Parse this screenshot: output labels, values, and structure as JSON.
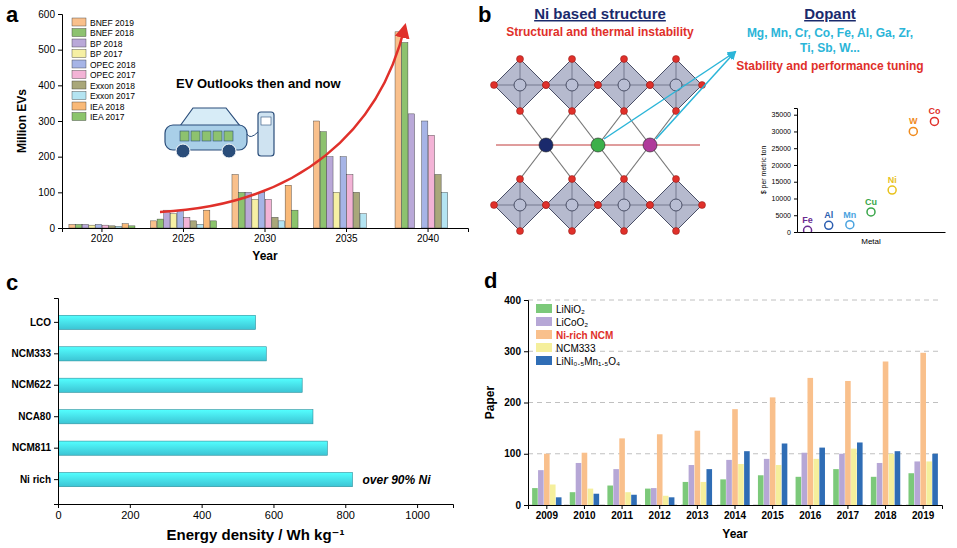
{
  "chart_data": [
    {
      "panel_label": "a",
      "type": "bar",
      "x_label": "Year",
      "y_label": "Million EVs",
      "annotations": [
        "EV Outlooks then and now"
      ],
      "categories": [
        "2020",
        "2025",
        "2030",
        "2035",
        "2040"
      ],
      "ylim": [
        0,
        600
      ],
      "yticks": [
        0,
        100,
        200,
        300,
        400,
        500,
        600
      ],
      "legend": "top-left",
      "series": [
        {
          "name": "BNEF 2019",
          "color": "#f9c08c",
          "values": [
            10,
            20,
            150,
            300,
            550
          ]
        },
        {
          "name": "BNEF 2018",
          "color": "#8dc26f",
          "values": [
            10,
            25,
            100,
            270,
            520
          ]
        },
        {
          "name": "BP 2018",
          "color": "#b9a8d8",
          "values": [
            10,
            50,
            100,
            200,
            320
          ]
        },
        {
          "name": "BP 2017",
          "color": "#f6f0a4",
          "values": [
            8,
            40,
            80,
            100,
            null
          ]
        },
        {
          "name": "OPEC 2018",
          "color": "#a6b4e6",
          "values": [
            10,
            50,
            100,
            200,
            300
          ]
        },
        {
          "name": "OPEC 2017",
          "color": "#f3b3d6",
          "values": [
            8,
            30,
            80,
            150,
            260
          ]
        },
        {
          "name": "Exxon 2018",
          "color": "#a9a77a",
          "values": [
            6,
            20,
            30,
            100,
            150
          ]
        },
        {
          "name": "Exxon 2017",
          "color": "#b4e4f2",
          "values": [
            5,
            10,
            20,
            40,
            100
          ]
        },
        {
          "name": "IEA 2018",
          "color": "#f9b978",
          "values": [
            12,
            50,
            120,
            null,
            null
          ]
        },
        {
          "name": "IEA 2017",
          "color": "#8bc46c",
          "values": [
            6,
            20,
            50,
            null,
            null
          ]
        }
      ]
    },
    {
      "panel_label": "b",
      "type": "scatter",
      "annotations": [
        "Ni based structure",
        "Structural and thermal instability",
        "Dopant",
        "Mg, Mn, Cr, Co, Fe, Al, Ga, Zr, Ti, Sb, W...",
        "Stability and performance tuning"
      ],
      "x_label": "Metal",
      "y_label": "$ per metric ton",
      "categories": [
        "Fe",
        "Al",
        "Mn",
        "Cu",
        "Ni",
        "W",
        "Co"
      ],
      "values": [
        500,
        2000,
        2200,
        6000,
        12500,
        30000,
        33000
      ],
      "colors": [
        "#6a2c91",
        "#2a5db0",
        "#4aa3df",
        "#3aa64a",
        "#e8c21c",
        "#f08a1c",
        "#e0302a"
      ],
      "marker": "circle",
      "tick_labels": "y",
      "ylim": [
        0,
        37000
      ],
      "yticks": [
        0,
        5000,
        10000,
        15000,
        20000,
        25000,
        30000,
        35000
      ]
    },
    {
      "panel_label": "c",
      "type": "bar",
      "orientation": "horizontal",
      "x_label": "Energy density / Wh kg⁻¹",
      "annotations": [
        "over 90% Ni"
      ],
      "categories": [
        "LCO",
        "NCM333",
        "NCM622",
        "NCA80",
        "NCM811",
        "Ni rich"
      ],
      "values": [
        550,
        580,
        680,
        710,
        750,
        820
      ],
      "color": "#3cc4d4",
      "xlim": [
        0,
        1100
      ],
      "xticks": [
        0,
        200,
        400,
        600,
        800,
        1000
      ]
    },
    {
      "panel_label": "d",
      "type": "bar",
      "x_label": "Year",
      "y_label": "Paper",
      "categories": [
        "2009",
        "2010",
        "2011",
        "2012",
        "2013",
        "2014",
        "2015",
        "2016",
        "2017",
        "2018",
        "2019"
      ],
      "ylim": [
        0,
        400
      ],
      "yticks": [
        0,
        100,
        200,
        300,
        400
      ],
      "grid": true,
      "legend": "top-left",
      "series": [
        {
          "name": "LiNiO₂",
          "color": "#7cc97a",
          "values": [
            33,
            25,
            38,
            32,
            45,
            50,
            58,
            55,
            70,
            55,
            62
          ]
        },
        {
          "name": "LiCoO₂",
          "color": "#b6a7d6",
          "values": [
            68,
            82,
            70,
            33,
            78,
            88,
            90,
            102,
            100,
            82,
            85
          ]
        },
        {
          "name": "Ni-rich NCM",
          "color": "#f9c08c",
          "values": [
            100,
            102,
            130,
            138,
            145,
            187,
            210,
            248,
            242,
            280,
            297
          ]
        },
        {
          "name": "NCM333",
          "color": "#f5ef9c",
          "values": [
            40,
            32,
            25,
            18,
            45,
            80,
            78,
            90,
            110,
            100,
            85
          ]
        },
        {
          "name": "LiNi₀.₅Mn₁.₅O₄",
          "color": "#2f6db5",
          "values": [
            15,
            22,
            20,
            15,
            70,
            105,
            120,
            112,
            122,
            105,
            100
          ]
        }
      ]
    }
  ]
}
